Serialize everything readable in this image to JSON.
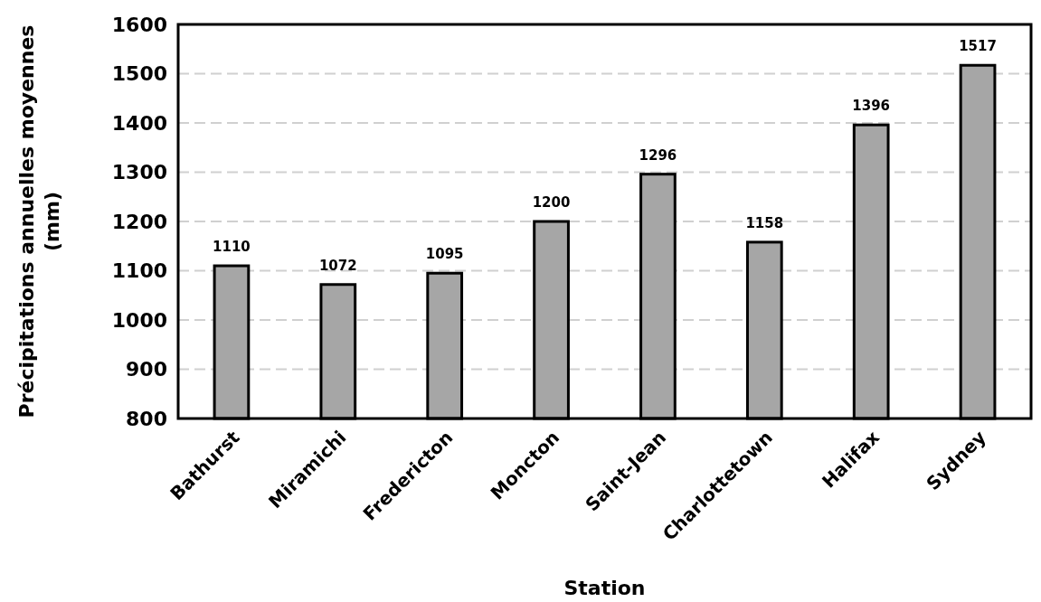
{
  "chart_data": {
    "type": "bar",
    "xlabel": "Station",
    "ylabel": "Précipitations annuelles moyennes (mm)",
    "categories": [
      "Bathurst",
      "Miramichi",
      "Fredericton",
      "Moncton",
      "Saint-Jean",
      "Charlottetown",
      "Halifax",
      "Sydney"
    ],
    "values": [
      1110,
      1072,
      1095,
      1200,
      1296,
      1158,
      1396,
      1517
    ],
    "color": "#a6a6a6",
    "data_labels": true,
    "grid": "y",
    "ylim": [
      800,
      1600
    ],
    "yticks": [
      800,
      900,
      1000,
      1100,
      1200,
      1300,
      1400,
      1500,
      1600
    ]
  }
}
